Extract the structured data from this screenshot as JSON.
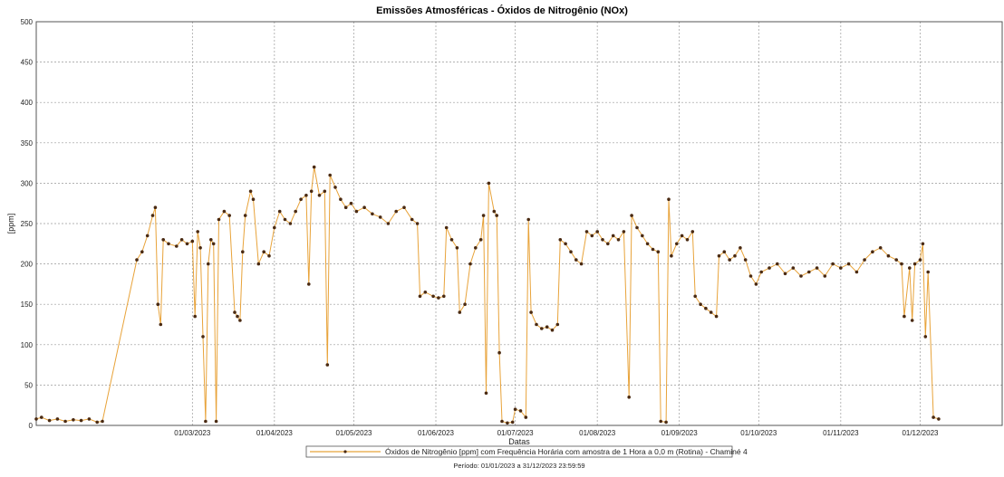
{
  "chart_data": {
    "type": "line",
    "title": "Emissões Atmosféricas - Óxidos de Nitrogênio (NOx)",
    "xlabel": "Datas",
    "ylabel": "[ppm]",
    "ylim": [
      0,
      500
    ],
    "yticks": [
      0,
      50,
      100,
      150,
      200,
      250,
      300,
      350,
      400,
      450,
      500
    ],
    "xlim": [
      "2023-01-01",
      "2023-12-31"
    ],
    "xticks": [
      {
        "date": "2023-03-01",
        "label": "01/03/2023"
      },
      {
        "date": "2023-04-01",
        "label": "01/04/2023"
      },
      {
        "date": "2023-05-01",
        "label": "01/05/2023"
      },
      {
        "date": "2023-06-01",
        "label": "01/06/2023"
      },
      {
        "date": "2023-07-01",
        "label": "01/07/2023"
      },
      {
        "date": "2023-08-01",
        "label": "01/08/2023"
      },
      {
        "date": "2023-09-01",
        "label": "01/09/2023"
      },
      {
        "date": "2023-10-01",
        "label": "01/10/2023"
      },
      {
        "date": "2023-11-01",
        "label": "01/11/2023"
      },
      {
        "date": "2023-12-01",
        "label": "01/12/2023"
      }
    ],
    "grid": true,
    "legend_position": "bottom",
    "line_color": "#e8a33a",
    "marker_color": "#4a2a12",
    "series": [
      {
        "name": "Óxidos de Nitrogênio [ppm] com Frequência Horária com amostra de 1 Hora a 0,0 m (Rotina) - Chaminé 4",
        "points": [
          [
            "2023-01-01",
            8
          ],
          [
            "2023-01-03",
            10
          ],
          [
            "2023-01-06",
            6
          ],
          [
            "2023-01-09",
            8
          ],
          [
            "2023-01-12",
            5
          ],
          [
            "2023-01-15",
            7
          ],
          [
            "2023-01-18",
            6
          ],
          [
            "2023-01-21",
            8
          ],
          [
            "2023-01-24",
            4
          ],
          [
            "2023-01-26",
            5
          ],
          [
            "2023-02-08",
            205
          ],
          [
            "2023-02-10",
            215
          ],
          [
            "2023-02-12",
            235
          ],
          [
            "2023-02-14",
            260
          ],
          [
            "2023-02-15",
            270
          ],
          [
            "2023-02-16",
            150
          ],
          [
            "2023-02-17",
            125
          ],
          [
            "2023-02-18",
            230
          ],
          [
            "2023-02-20",
            225
          ],
          [
            "2023-02-23",
            222
          ],
          [
            "2023-02-25",
            230
          ],
          [
            "2023-02-27",
            225
          ],
          [
            "2023-03-01",
            228
          ],
          [
            "2023-03-02",
            135
          ],
          [
            "2023-03-03",
            240
          ],
          [
            "2023-03-04",
            220
          ],
          [
            "2023-03-05",
            110
          ],
          [
            "2023-03-06",
            5
          ],
          [
            "2023-03-07",
            200
          ],
          [
            "2023-03-08",
            230
          ],
          [
            "2023-03-09",
            225
          ],
          [
            "2023-03-10",
            5
          ],
          [
            "2023-03-11",
            255
          ],
          [
            "2023-03-13",
            265
          ],
          [
            "2023-03-15",
            260
          ],
          [
            "2023-03-17",
            140
          ],
          [
            "2023-03-18",
            135
          ],
          [
            "2023-03-19",
            130
          ],
          [
            "2023-03-20",
            215
          ],
          [
            "2023-03-21",
            260
          ],
          [
            "2023-03-23",
            290
          ],
          [
            "2023-03-24",
            280
          ],
          [
            "2023-03-26",
            200
          ],
          [
            "2023-03-28",
            215
          ],
          [
            "2023-03-30",
            210
          ],
          [
            "2023-04-01",
            245
          ],
          [
            "2023-04-03",
            265
          ],
          [
            "2023-04-05",
            255
          ],
          [
            "2023-04-07",
            250
          ],
          [
            "2023-04-09",
            265
          ],
          [
            "2023-04-11",
            280
          ],
          [
            "2023-04-13",
            285
          ],
          [
            "2023-04-14",
            175
          ],
          [
            "2023-04-15",
            290
          ],
          [
            "2023-04-16",
            320
          ],
          [
            "2023-04-18",
            285
          ],
          [
            "2023-04-20",
            290
          ],
          [
            "2023-04-21",
            75
          ],
          [
            "2023-04-22",
            310
          ],
          [
            "2023-04-24",
            295
          ],
          [
            "2023-04-26",
            280
          ],
          [
            "2023-04-28",
            270
          ],
          [
            "2023-04-30",
            275
          ],
          [
            "2023-05-02",
            265
          ],
          [
            "2023-05-05",
            270
          ],
          [
            "2023-05-08",
            262
          ],
          [
            "2023-05-11",
            258
          ],
          [
            "2023-05-14",
            250
          ],
          [
            "2023-05-17",
            265
          ],
          [
            "2023-05-20",
            270
          ],
          [
            "2023-05-23",
            255
          ],
          [
            "2023-05-25",
            250
          ],
          [
            "2023-05-26",
            160
          ],
          [
            "2023-05-28",
            165
          ],
          [
            "2023-05-31",
            160
          ],
          [
            "2023-06-02",
            158
          ],
          [
            "2023-06-04",
            160
          ],
          [
            "2023-06-05",
            245
          ],
          [
            "2023-06-07",
            230
          ],
          [
            "2023-06-09",
            220
          ],
          [
            "2023-06-10",
            140
          ],
          [
            "2023-06-12",
            150
          ],
          [
            "2023-06-14",
            200
          ],
          [
            "2023-06-16",
            220
          ],
          [
            "2023-06-18",
            230
          ],
          [
            "2023-06-19",
            260
          ],
          [
            "2023-06-20",
            40
          ],
          [
            "2023-06-21",
            300
          ],
          [
            "2023-06-23",
            265
          ],
          [
            "2023-06-24",
            260
          ],
          [
            "2023-06-25",
            90
          ],
          [
            "2023-06-26",
            5
          ],
          [
            "2023-06-28",
            3
          ],
          [
            "2023-06-30",
            4
          ],
          [
            "2023-07-01",
            20
          ],
          [
            "2023-07-03",
            18
          ],
          [
            "2023-07-05",
            10
          ],
          [
            "2023-07-06",
            255
          ],
          [
            "2023-07-07",
            140
          ],
          [
            "2023-07-09",
            125
          ],
          [
            "2023-07-11",
            120
          ],
          [
            "2023-07-13",
            122
          ],
          [
            "2023-07-15",
            118
          ],
          [
            "2023-07-17",
            125
          ],
          [
            "2023-07-18",
            230
          ],
          [
            "2023-07-20",
            225
          ],
          [
            "2023-07-22",
            215
          ],
          [
            "2023-07-24",
            205
          ],
          [
            "2023-07-26",
            200
          ],
          [
            "2023-07-28",
            240
          ],
          [
            "2023-07-30",
            235
          ],
          [
            "2023-08-01",
            240
          ],
          [
            "2023-08-03",
            230
          ],
          [
            "2023-08-05",
            225
          ],
          [
            "2023-08-07",
            235
          ],
          [
            "2023-08-09",
            230
          ],
          [
            "2023-08-11",
            240
          ],
          [
            "2023-08-13",
            35
          ],
          [
            "2023-08-14",
            260
          ],
          [
            "2023-08-16",
            245
          ],
          [
            "2023-08-18",
            235
          ],
          [
            "2023-08-20",
            225
          ],
          [
            "2023-08-22",
            218
          ],
          [
            "2023-08-24",
            215
          ],
          [
            "2023-08-25",
            5
          ],
          [
            "2023-08-27",
            4
          ],
          [
            "2023-08-28",
            280
          ],
          [
            "2023-08-29",
            210
          ],
          [
            "2023-08-31",
            225
          ],
          [
            "2023-09-02",
            235
          ],
          [
            "2023-09-04",
            230
          ],
          [
            "2023-09-06",
            240
          ],
          [
            "2023-09-07",
            160
          ],
          [
            "2023-09-09",
            150
          ],
          [
            "2023-09-11",
            145
          ],
          [
            "2023-09-13",
            140
          ],
          [
            "2023-09-15",
            135
          ],
          [
            "2023-09-16",
            210
          ],
          [
            "2023-09-18",
            215
          ],
          [
            "2023-09-20",
            205
          ],
          [
            "2023-09-22",
            210
          ],
          [
            "2023-09-24",
            220
          ],
          [
            "2023-09-26",
            205
          ],
          [
            "2023-09-28",
            185
          ],
          [
            "2023-09-30",
            175
          ],
          [
            "2023-10-02",
            190
          ],
          [
            "2023-10-05",
            195
          ],
          [
            "2023-10-08",
            200
          ],
          [
            "2023-10-11",
            188
          ],
          [
            "2023-10-14",
            195
          ],
          [
            "2023-10-17",
            185
          ],
          [
            "2023-10-20",
            190
          ],
          [
            "2023-10-23",
            195
          ],
          [
            "2023-10-26",
            185
          ],
          [
            "2023-10-29",
            200
          ],
          [
            "2023-11-01",
            195
          ],
          [
            "2023-11-04",
            200
          ],
          [
            "2023-11-07",
            190
          ],
          [
            "2023-11-10",
            205
          ],
          [
            "2023-11-13",
            215
          ],
          [
            "2023-11-16",
            220
          ],
          [
            "2023-11-19",
            210
          ],
          [
            "2023-11-22",
            205
          ],
          [
            "2023-11-24",
            200
          ],
          [
            "2023-11-25",
            135
          ],
          [
            "2023-11-27",
            195
          ],
          [
            "2023-11-28",
            130
          ],
          [
            "2023-11-29",
            200
          ],
          [
            "2023-12-01",
            205
          ],
          [
            "2023-12-02",
            225
          ],
          [
            "2023-12-03",
            110
          ],
          [
            "2023-12-04",
            190
          ],
          [
            "2023-12-06",
            10
          ],
          [
            "2023-12-08",
            8
          ]
        ]
      }
    ],
    "period_text": "Período: 01/01/2023 a 31/12/2023 23:59:59"
  }
}
